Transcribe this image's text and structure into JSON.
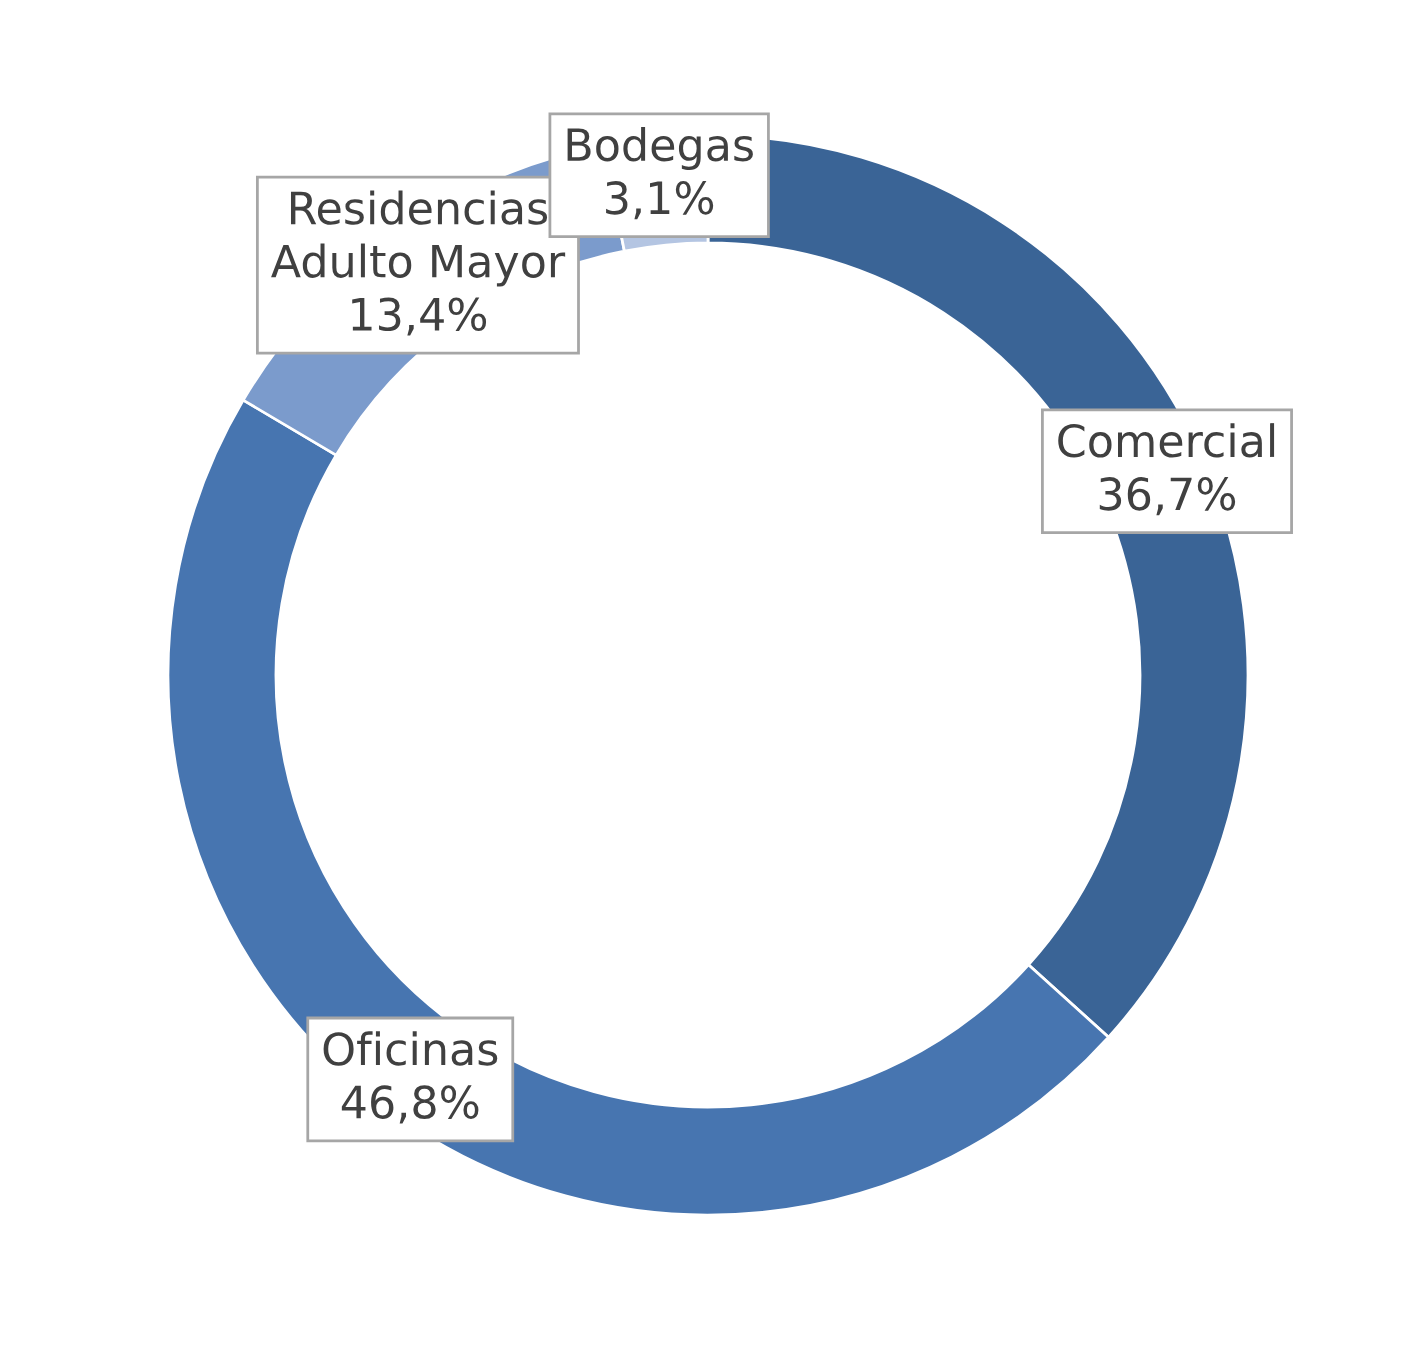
{
  "chart_data": {
    "type": "donut",
    "categories": [
      "Comercial",
      "Oficinas",
      "Residencias\nAdulto Mayor",
      "Bodegas"
    ],
    "values": [
      36.7,
      46.8,
      13.4,
      3.1
    ],
    "value_labels": [
      "36,7%",
      "46,8%",
      "13,4%",
      "3,1%"
    ],
    "colors": [
      "#3a6496",
      "#4775b0",
      "#7b9bcc",
      "#b4c5e2"
    ],
    "legend": false
  }
}
